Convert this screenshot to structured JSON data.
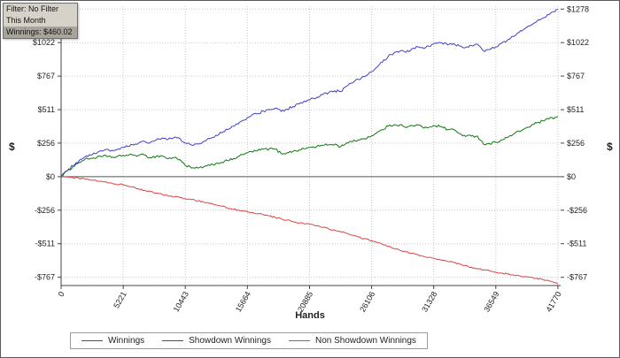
{
  "info_box": {
    "filter_label": "Filter: No Filter",
    "period_label": "This Month",
    "winnings_label": "Winnings: $460.02"
  },
  "chart_data": {
    "type": "line",
    "title": "",
    "xlabel": "Hands",
    "ylabel": "$",
    "ylabel_right": "$",
    "grid": "dotted",
    "legend_position": "bottom",
    "xlim": [
      0,
      42000
    ],
    "ylim": [
      -830,
      1300
    ],
    "xticks": [
      0,
      5221,
      10443,
      15664,
      20885,
      26106,
      31328,
      36549,
      41770
    ],
    "yticks": [
      {
        "value": 1278,
        "label": "$1278"
      },
      {
        "value": 1022,
        "label": "$1022"
      },
      {
        "value": 767,
        "label": "$767"
      },
      {
        "value": 511,
        "label": "$511"
      },
      {
        "value": 256,
        "label": "$256"
      },
      {
        "value": 0,
        "label": "$0"
      },
      {
        "value": -256,
        "label": "-$256"
      },
      {
        "value": -511,
        "label": "-$511"
      },
      {
        "value": -767,
        "label": "-$767"
      }
    ],
    "x": [
      0,
      500,
      1000,
      1500,
      2000,
      2500,
      3000,
      3500,
      4000,
      4500,
      5221,
      6000,
      6500,
      7000,
      7500,
      8000,
      8500,
      9000,
      9500,
      10000,
      10443,
      11000,
      11500,
      12000,
      12500,
      13000,
      13500,
      14000,
      14500,
      15000,
      15664,
      16000,
      16500,
      17000,
      17500,
      18000,
      18500,
      19000,
      19500,
      20000,
      20885,
      21500,
      22000,
      22500,
      23000,
      23500,
      24000,
      24500,
      25000,
      25500,
      26106,
      26500,
      27000,
      27500,
      28000,
      28500,
      29000,
      29500,
      30000,
      30500,
      31328,
      32000,
      32500,
      33000,
      33500,
      34000,
      34500,
      35000,
      35500,
      36000,
      36549,
      37000,
      37500,
      38000,
      38500,
      39000,
      39500,
      40000,
      40500,
      41000,
      41500,
      41770
    ],
    "series": [
      {
        "name": "Winnings",
        "color": "#117711",
        "noise": 9,
        "final_value": 460.02,
        "y": [
          0,
          42,
          77,
          108,
          132,
          140,
          147,
          155,
          157,
          145,
          163,
          165,
          163,
          165,
          145,
          155,
          159,
          137,
          146,
          130,
          87,
          65,
          65,
          75,
          85,
          100,
          109,
          122,
          137,
          157,
          182,
          191,
          198,
          210,
          212,
          211,
          176,
          183,
          193,
          203,
          223,
          230,
          239,
          244,
          247,
          228,
          258,
          267,
          282,
          290,
          312,
          332,
          357,
          386,
          397,
          396,
          373,
          390,
          395,
          370,
          390,
          382,
          359,
          360,
          329,
          307,
          310,
          310,
          250,
          252,
          262,
          280,
          298,
          322,
          345,
          368,
          387,
          410,
          425,
          440,
          450,
          460.02
        ]
      },
      {
        "name": "Showdown Winnings",
        "color": "#4040cc",
        "noise": 9,
        "final_value": 1278,
        "y": [
          0,
          45,
          85,
          120,
          150,
          165,
          180,
          195,
          205,
          200,
          225,
          245,
          255,
          270,
          260,
          280,
          295,
          285,
          300,
          290,
          255,
          240,
          250,
          270,
          290,
          315,
          335,
          360,
          385,
          415,
          450,
          465,
          480,
          500,
          512,
          522,
          498,
          515,
          535,
          555,
          585,
          605,
          625,
          642,
          655,
          648,
          690,
          715,
          742,
          762,
          800,
          832,
          872,
          918,
          945,
          958,
          948,
          975,
          990,
          978,
          1012,
          1020,
          1005,
          1015,
          995,
          985,
          1000,
          1010,
          960,
          970,
          990,
          1015,
          1040,
          1070,
          1100,
          1130,
          1155,
          1185,
          1210,
          1235,
          1258,
          1278
        ]
      },
      {
        "name": "Non Showdown Winnings",
        "color": "#dd4444",
        "noise": 6,
        "final_value": -818,
        "y": [
          0,
          -3,
          -8,
          -12,
          -18,
          -25,
          -33,
          -40,
          -48,
          -55,
          -62,
          -80,
          -92,
          -105,
          -115,
          -125,
          -136,
          -148,
          -154,
          -160,
          -168,
          -175,
          -185,
          -195,
          -205,
          -215,
          -226,
          -238,
          -248,
          -258,
          -268,
          -274,
          -282,
          -290,
          -300,
          -311,
          -322,
          -332,
          -342,
          -352,
          -362,
          -375,
          -386,
          -398,
          -408,
          -420,
          -432,
          -448,
          -460,
          -472,
          -488,
          -500,
          -515,
          -532,
          -548,
          -562,
          -575,
          -585,
          -595,
          -608,
          -622,
          -638,
          -646,
          -655,
          -666,
          -678,
          -690,
          -700,
          -710,
          -718,
          -728,
          -735,
          -742,
          -748,
          -755,
          -762,
          -768,
          -775,
          -785,
          -795,
          -808,
          -818
        ]
      }
    ]
  }
}
